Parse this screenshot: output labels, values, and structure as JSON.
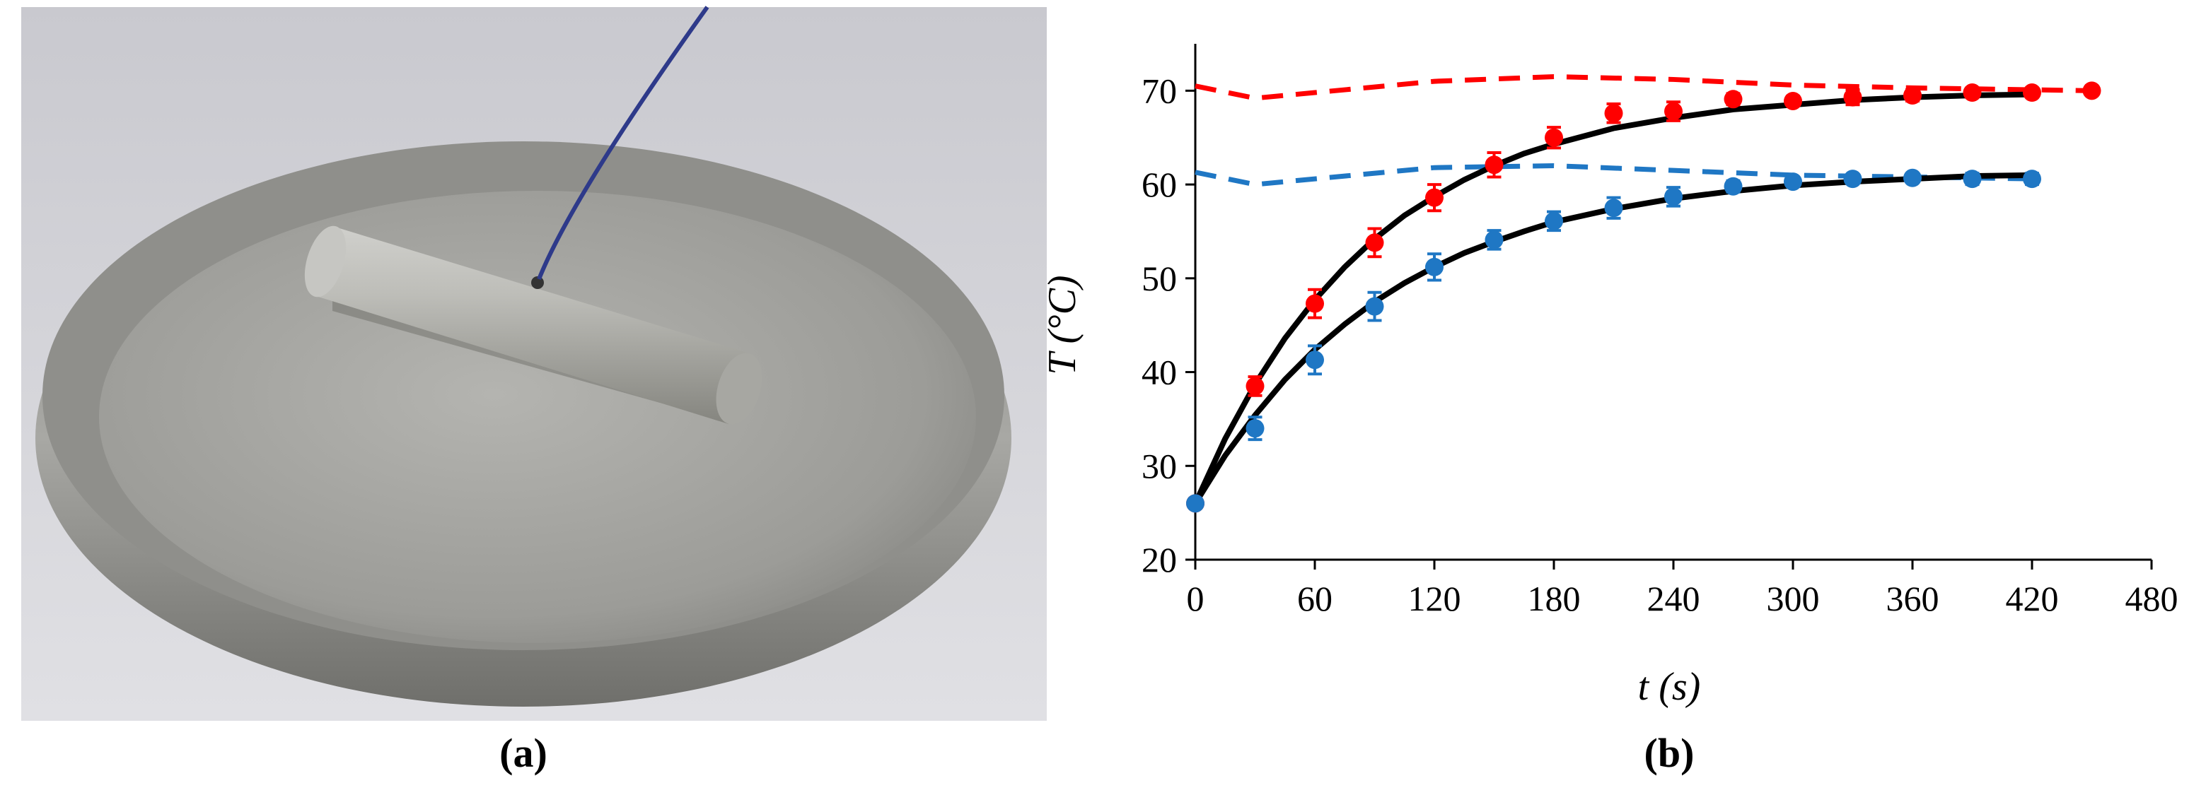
{
  "panel_labels": [
    "(a)",
    "(b)"
  ],
  "chart_data": {
    "type": "scatter-line",
    "xlabel": "t (s)",
    "ylabel": "T (°C)",
    "xlim": [
      0,
      480
    ],
    "ylim": [
      20,
      75
    ],
    "xticks": [
      0,
      60,
      120,
      180,
      240,
      300,
      360,
      420,
      480
    ],
    "yticks": [
      20,
      30,
      40,
      50,
      60,
      70
    ],
    "series": [
      {
        "style": "dashed",
        "color": "#ff0000",
        "x": [
          0,
          30,
          60,
          120,
          180,
          240,
          300,
          360,
          420,
          450
        ],
        "values": [
          70.5,
          69.2,
          69.8,
          71.0,
          71.5,
          71.2,
          70.6,
          70.3,
          70.1,
          70.0
        ]
      },
      {
        "style": "dashed",
        "color": "#1f77c4",
        "x": [
          0,
          30,
          60,
          120,
          180,
          240,
          300,
          360,
          420
        ],
        "values": [
          61.3,
          60.0,
          60.6,
          61.8,
          62.0,
          61.5,
          61.0,
          60.8,
          60.6
        ]
      },
      {
        "style": "line",
        "color": "#000000",
        "x": [
          0,
          15,
          30,
          45,
          60,
          75,
          90,
          105,
          120,
          135,
          150,
          165,
          180,
          210,
          240,
          270,
          300,
          330,
          360,
          390,
          420
        ],
        "values": [
          26,
          32.9,
          38.7,
          43.6,
          47.7,
          51.2,
          54.2,
          56.7,
          58.7,
          60.5,
          62.0,
          63.3,
          64.3,
          66.0,
          67.1,
          68.0,
          68.5,
          69.0,
          69.3,
          69.5,
          69.6
        ]
      },
      {
        "style": "line",
        "color": "#000000",
        "x": [
          0,
          15,
          30,
          45,
          60,
          75,
          90,
          105,
          120,
          135,
          150,
          165,
          180,
          210,
          240,
          270,
          300,
          330,
          360,
          390,
          420
        ],
        "values": [
          26,
          31.1,
          35.4,
          39.2,
          42.4,
          45.1,
          47.5,
          49.5,
          51.2,
          52.7,
          53.9,
          55.0,
          56.0,
          57.4,
          58.5,
          59.3,
          59.9,
          60.3,
          60.6,
          60.9,
          61.0
        ]
      },
      {
        "style": "markers",
        "color": "#ff0000",
        "x": [
          0,
          30,
          60,
          90,
          120,
          150,
          180,
          210,
          240,
          270,
          300,
          330,
          360,
          390,
          420,
          450
        ],
        "values": [
          26,
          38.5,
          47.3,
          53.8,
          58.6,
          62.1,
          65.0,
          67.6,
          67.8,
          69.1,
          68.9,
          69.3,
          69.5,
          69.8,
          69.8,
          70.0
        ],
        "errors": [
          0.3,
          1.0,
          1.5,
          1.5,
          1.4,
          1.3,
          1.1,
          1.0,
          1.0,
          0.6,
          0.5,
          0.8,
          0.6,
          0.5,
          0.4,
          0.3
        ]
      },
      {
        "style": "markers",
        "color": "#1f77c4",
        "x": [
          0,
          30,
          60,
          90,
          120,
          150,
          180,
          210,
          240,
          270,
          300,
          330,
          360,
          390,
          420
        ],
        "values": [
          26,
          34.0,
          41.3,
          47.0,
          51.2,
          54.1,
          56.1,
          57.5,
          58.7,
          59.8,
          60.3,
          60.6,
          60.7,
          60.6,
          60.6
        ],
        "errors": [
          0.3,
          1.2,
          1.5,
          1.5,
          1.4,
          1.0,
          1.0,
          1.1,
          1.0,
          0.6,
          0.5,
          0.4,
          0.4,
          0.6,
          0.6
        ]
      }
    ]
  }
}
